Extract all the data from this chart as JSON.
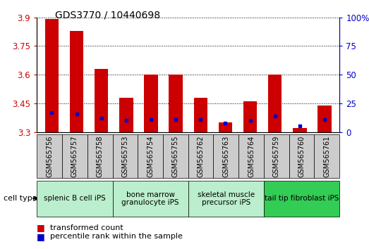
{
  "title": "GDS3770 / 10440698",
  "samples": [
    "GSM565756",
    "GSM565757",
    "GSM565758",
    "GSM565753",
    "GSM565754",
    "GSM565755",
    "GSM565762",
    "GSM565763",
    "GSM565764",
    "GSM565759",
    "GSM565760",
    "GSM565761"
  ],
  "red_values": [
    3.89,
    3.83,
    3.63,
    3.48,
    3.6,
    3.6,
    3.48,
    3.35,
    3.46,
    3.6,
    3.32,
    3.44
  ],
  "blue_percentiles": [
    17,
    16,
    12,
    10,
    11,
    11,
    11,
    8,
    10,
    14,
    5,
    11
  ],
  "ylim_left": [
    3.3,
    3.9
  ],
  "ylim_right": [
    0,
    100
  ],
  "yticks_left": [
    3.3,
    3.45,
    3.6,
    3.75,
    3.9
  ],
  "ytick_labels_left": [
    "3.3",
    "3.45",
    "3.6",
    "3.75",
    "3.9"
  ],
  "yticks_right": [
    0,
    25,
    50,
    75,
    100
  ],
  "ytick_labels_right": [
    "0",
    "25",
    "50",
    "75",
    "100%"
  ],
  "baseline": 3.3,
  "cell_types": [
    {
      "label": "splenic B cell iPS",
      "start": 0,
      "end": 2,
      "color": "#bbeecc"
    },
    {
      "label": "bone marrow\ngranulocyte iPS",
      "start": 3,
      "end": 5,
      "color": "#bbeecc"
    },
    {
      "label": "skeletal muscle\nprecursor iPS",
      "start": 6,
      "end": 8,
      "color": "#bbeecc"
    },
    {
      "label": "tail tip fibroblast iPS",
      "start": 9,
      "end": 11,
      "color": "#33cc55"
    }
  ],
  "bar_color_red": "#cc0000",
  "bar_color_blue": "#0000cc",
  "bar_width": 0.55,
  "background_color": "#ffffff",
  "tick_color_left": "#cc0000",
  "tick_color_right": "#0000cc",
  "title_fontsize": 10,
  "tick_fontsize": 8.5,
  "sample_fontsize": 7,
  "celltype_fontsize": 7.5,
  "legend_fontsize": 8
}
